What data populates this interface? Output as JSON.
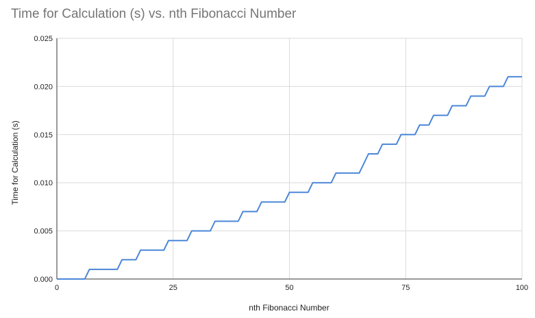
{
  "chart_data": {
    "type": "line",
    "title": "Time for Calculation (s) vs. nth Fibonacci Number",
    "xlabel": "nth Fibonacci Number",
    "ylabel": "Time for Calculation (s)",
    "xlim": [
      0,
      100
    ],
    "ylim": [
      0,
      0.025
    ],
    "x_ticks": [
      "0",
      "25",
      "50",
      "75",
      "100"
    ],
    "y_ticks": [
      "0.000",
      "0.005",
      "0.010",
      "0.015",
      "0.020",
      "0.025"
    ],
    "grid": true,
    "legend": "none",
    "colors": {
      "line": "#4a86d8",
      "grid": "#d9d9d9",
      "axis": "#333333"
    },
    "series": [
      {
        "x": [
          0,
          6,
          7,
          13,
          14,
          17,
          18,
          23,
          24,
          28,
          29,
          33,
          34,
          39,
          40,
          43,
          44,
          49,
          50,
          54,
          55,
          59,
          60,
          65,
          67,
          69,
          70,
          73,
          74,
          77,
          78,
          80,
          81,
          84,
          85,
          88,
          89,
          92,
          93,
          96,
          97,
          100
        ],
        "y": [
          0,
          0,
          0.001,
          0.001,
          0.002,
          0.002,
          0.003,
          0.003,
          0.004,
          0.004,
          0.005,
          0.005,
          0.006,
          0.006,
          0.007,
          0.007,
          0.008,
          0.008,
          0.009,
          0.009,
          0.01,
          0.01,
          0.011,
          0.011,
          0.013,
          0.013,
          0.014,
          0.014,
          0.015,
          0.015,
          0.016,
          0.016,
          0.017,
          0.017,
          0.018,
          0.018,
          0.019,
          0.019,
          0.02,
          0.02,
          0.021,
          0.021
        ]
      }
    ]
  }
}
